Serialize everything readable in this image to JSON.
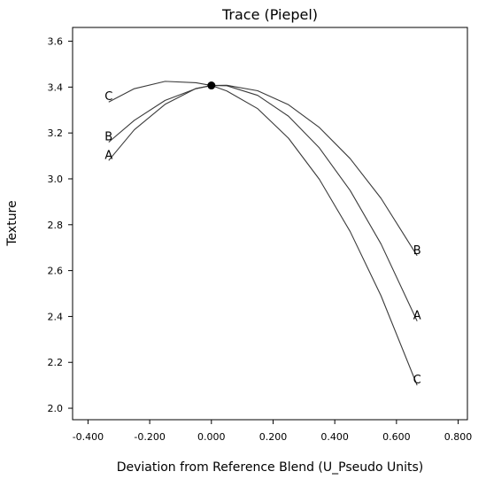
{
  "chart_data": {
    "type": "line",
    "title": "Trace (Piepel)",
    "xlabel": "Deviation from Reference Blend (U_Pseudo Units)",
    "ylabel": "Texture",
    "xlim": [
      -0.45,
      0.83
    ],
    "ylim": [
      1.95,
      3.66
    ],
    "x_ticks": [
      "-0.400",
      "-0.200",
      "0.000",
      "0.200",
      "0.400",
      "0.600",
      "0.800"
    ],
    "y_ticks": [
      "2.0",
      "2.2",
      "2.4",
      "2.6",
      "2.8",
      "3.0",
      "3.2",
      "3.4",
      "3.6"
    ],
    "grid": false,
    "reference_point": {
      "x": 0.0,
      "y": 3.407
    },
    "series": [
      {
        "name": "A",
        "x": [
          -0.333,
          -0.25,
          -0.15,
          -0.05,
          0.0,
          0.05,
          0.15,
          0.25,
          0.35,
          0.45,
          0.55,
          0.667
        ],
        "values": [
          3.08,
          3.214,
          3.325,
          3.394,
          3.407,
          3.406,
          3.364,
          3.273,
          3.135,
          2.949,
          2.716,
          2.38
        ]
      },
      {
        "name": "B",
        "x": [
          -0.333,
          -0.25,
          -0.15,
          -0.05,
          0.0,
          0.05,
          0.15,
          0.25,
          0.35,
          0.45,
          0.55,
          0.667
        ],
        "values": [
          3.16,
          3.255,
          3.342,
          3.393,
          3.407,
          3.408,
          3.384,
          3.323,
          3.224,
          3.088,
          2.915,
          2.665
        ]
      },
      {
        "name": "C",
        "x": [
          -0.333,
          -0.25,
          -0.15,
          -0.05,
          0.0,
          0.05,
          0.15,
          0.25,
          0.35,
          0.45,
          0.55,
          0.667
        ],
        "values": [
          3.335,
          3.393,
          3.425,
          3.419,
          3.407,
          3.383,
          3.306,
          3.177,
          2.998,
          2.77,
          2.49,
          2.1
        ]
      }
    ],
    "curve_labels": [
      {
        "name": "A",
        "end": "left"
      },
      {
        "name": "B",
        "end": "left"
      },
      {
        "name": "C",
        "end": "left"
      },
      {
        "name": "A",
        "end": "right"
      },
      {
        "name": "B",
        "end": "right"
      },
      {
        "name": "C",
        "end": "right"
      }
    ]
  }
}
